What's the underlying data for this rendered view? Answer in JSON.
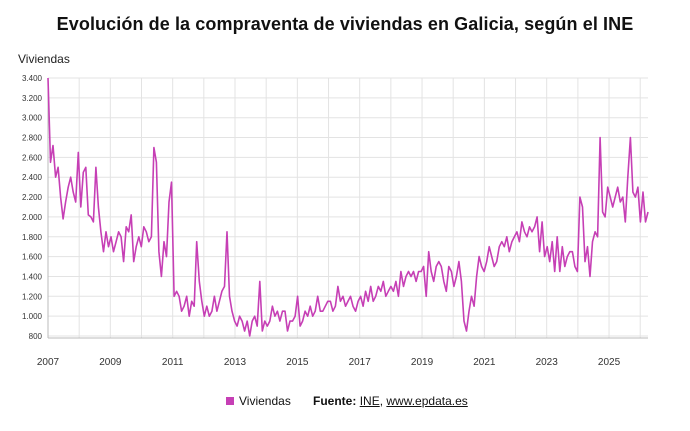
{
  "chart_data": {
    "type": "line",
    "title": "Evolución de la compraventa de viviendas en Galicia, según el INE",
    "ylabel": "Viviendas",
    "ylim": [
      700,
      3400
    ],
    "yticks": [
      "800",
      "1.000",
      "1.200",
      "1.400",
      "1.600",
      "1.800",
      "2.000",
      "2.200",
      "2.400",
      "2.600",
      "2.800",
      "3.000",
      "3.200",
      "3.400"
    ],
    "xticks": [
      "2007",
      "2009",
      "2011",
      "2013",
      "2015",
      "2017",
      "2019",
      "2021",
      "2023",
      "2025"
    ],
    "x_start_year": 2007,
    "grid": true,
    "legend_position": "bottom",
    "color": "#c63fb5",
    "series": [
      {
        "name": "Viviendas",
        "values": [
          3400,
          2550,
          2720,
          2400,
          2500,
          2200,
          1980,
          2150,
          2300,
          2400,
          2250,
          2150,
          2650,
          2100,
          2450,
          2500,
          2020,
          2000,
          1950,
          2500,
          2100,
          1850,
          1650,
          1850,
          1700,
          1800,
          1650,
          1750,
          1850,
          1800,
          1550,
          1900,
          1850,
          2020,
          1550,
          1700,
          1800,
          1700,
          1900,
          1850,
          1750,
          1800,
          2700,
          2550,
          1650,
          1400,
          1750,
          1600,
          2150,
          2350,
          1200,
          1250,
          1200,
          1050,
          1100,
          1200,
          1000,
          1150,
          1100,
          1750,
          1350,
          1150,
          1000,
          1100,
          1000,
          1050,
          1200,
          1050,
          1150,
          1250,
          1300,
          1850,
          1200,
          1050,
          950,
          900,
          1000,
          950,
          850,
          950,
          800,
          950,
          1000,
          900,
          1350,
          850,
          950,
          900,
          950,
          1100,
          1000,
          1050,
          950,
          1050,
          1050,
          850,
          950,
          950,
          1000,
          1200,
          900,
          950,
          1050,
          1000,
          1100,
          1000,
          1050,
          1200,
          1050,
          1050,
          1100,
          1150,
          1150,
          1050,
          1100,
          1300,
          1150,
          1200,
          1100,
          1150,
          1200,
          1100,
          1050,
          1150,
          1200,
          1100,
          1250,
          1150,
          1300,
          1150,
          1200,
          1300,
          1250,
          1350,
          1200,
          1250,
          1300,
          1250,
          1350,
          1200,
          1450,
          1300,
          1400,
          1450,
          1400,
          1450,
          1350,
          1450,
          1450,
          1500,
          1200,
          1650,
          1450,
          1350,
          1500,
          1550,
          1500,
          1350,
          1250,
          1500,
          1450,
          1300,
          1400,
          1550,
          1350,
          950,
          850,
          1050,
          1200,
          1100,
          1400,
          1600,
          1500,
          1450,
          1550,
          1700,
          1600,
          1500,
          1550,
          1700,
          1750,
          1700,
          1800,
          1650,
          1750,
          1800,
          1850,
          1750,
          1950,
          1850,
          1800,
          1900,
          1850,
          1900,
          2000,
          1650,
          1950,
          1600,
          1700,
          1550,
          1750,
          1450,
          1800,
          1450,
          1700,
          1500,
          1600,
          1650,
          1650,
          1500,
          1450,
          2200,
          2100,
          1550,
          1700,
          1400,
          1750,
          1850,
          1800,
          2800,
          2050,
          2000,
          2300,
          2200,
          2100,
          2200,
          2300,
          2150,
          2200,
          1950,
          2400,
          2800,
          2250,
          2200,
          2300,
          1950,
          2250,
          1950,
          2050
        ]
      }
    ]
  },
  "legend": {
    "label": "Viviendas"
  },
  "source": {
    "label": "Fuente:",
    "org": "INE",
    "separator": ",",
    "url": "www.epdata.es"
  }
}
